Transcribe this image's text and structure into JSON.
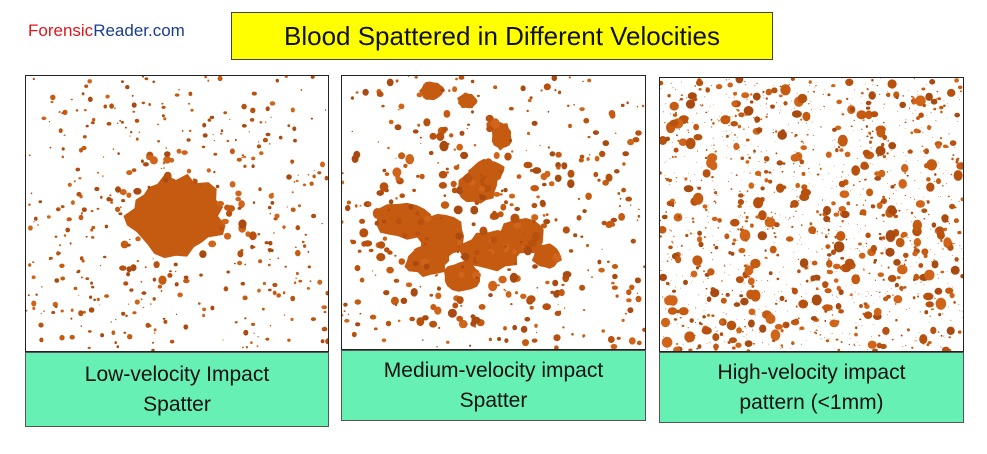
{
  "brand": {
    "part1": "Forensic",
    "part2": "Reader.com"
  },
  "title": "Blood Spattered in Different Velocities",
  "panels": [
    {
      "caption": "Low-velocity Impact Spatter"
    },
    {
      "caption": "Medium-velocity impact Spatter"
    },
    {
      "caption": "High-velocity impact pattern (<1mm)"
    }
  ]
}
